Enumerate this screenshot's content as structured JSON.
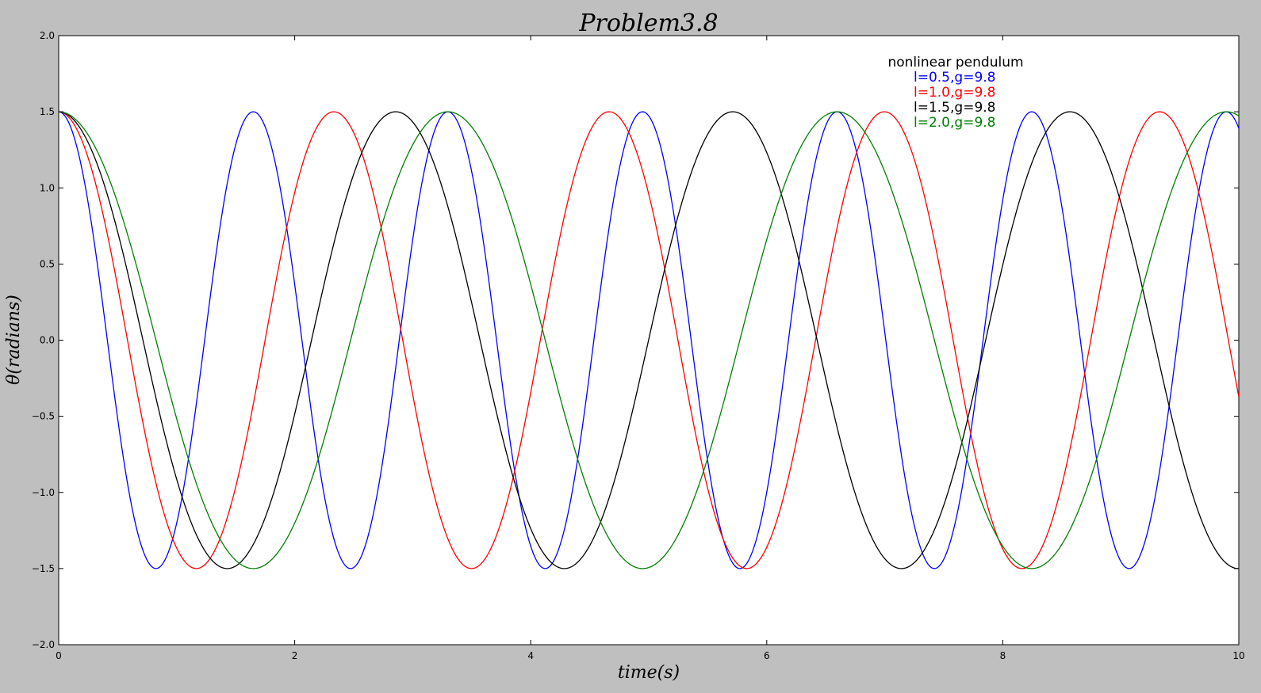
{
  "chart_data": {
    "type": "line",
    "title": "Problem3.8",
    "xlabel": "time(s)",
    "ylabel": "θ(radians)",
    "xlim": [
      0,
      10
    ],
    "ylim": [
      -2.0,
      2.0
    ],
    "x_ticks": [
      0,
      2,
      4,
      6,
      8,
      10
    ],
    "x_tick_labels": [
      "0",
      "2",
      "4",
      "6",
      "8",
      "10"
    ],
    "y_ticks": [
      -2.0,
      -1.5,
      -1.0,
      -0.5,
      0.0,
      0.5,
      1.0,
      1.5,
      2.0
    ],
    "y_tick_labels": [
      "−2.0",
      "−1.5",
      "−1.0",
      "−0.5",
      "0.0",
      "0.5",
      "1.0",
      "1.5",
      "2.0"
    ],
    "grid": false,
    "legend": {
      "title": "nonlinear pendulum",
      "placement": "top-right"
    },
    "theta0": 1.5,
    "g": 9.8,
    "series": [
      {
        "name": "l=0.5,g=9.8",
        "l": 0.5,
        "color": "#0000ff"
      },
      {
        "name": "l=1.0,g=9.8",
        "l": 1.0,
        "color": "#ff0000"
      },
      {
        "name": "l=1.5,g=9.8",
        "l": 1.5,
        "color": "#000000"
      },
      {
        "name": "l=2.0,g=9.8",
        "l": 2.0,
        "color": "#008000"
      }
    ]
  }
}
